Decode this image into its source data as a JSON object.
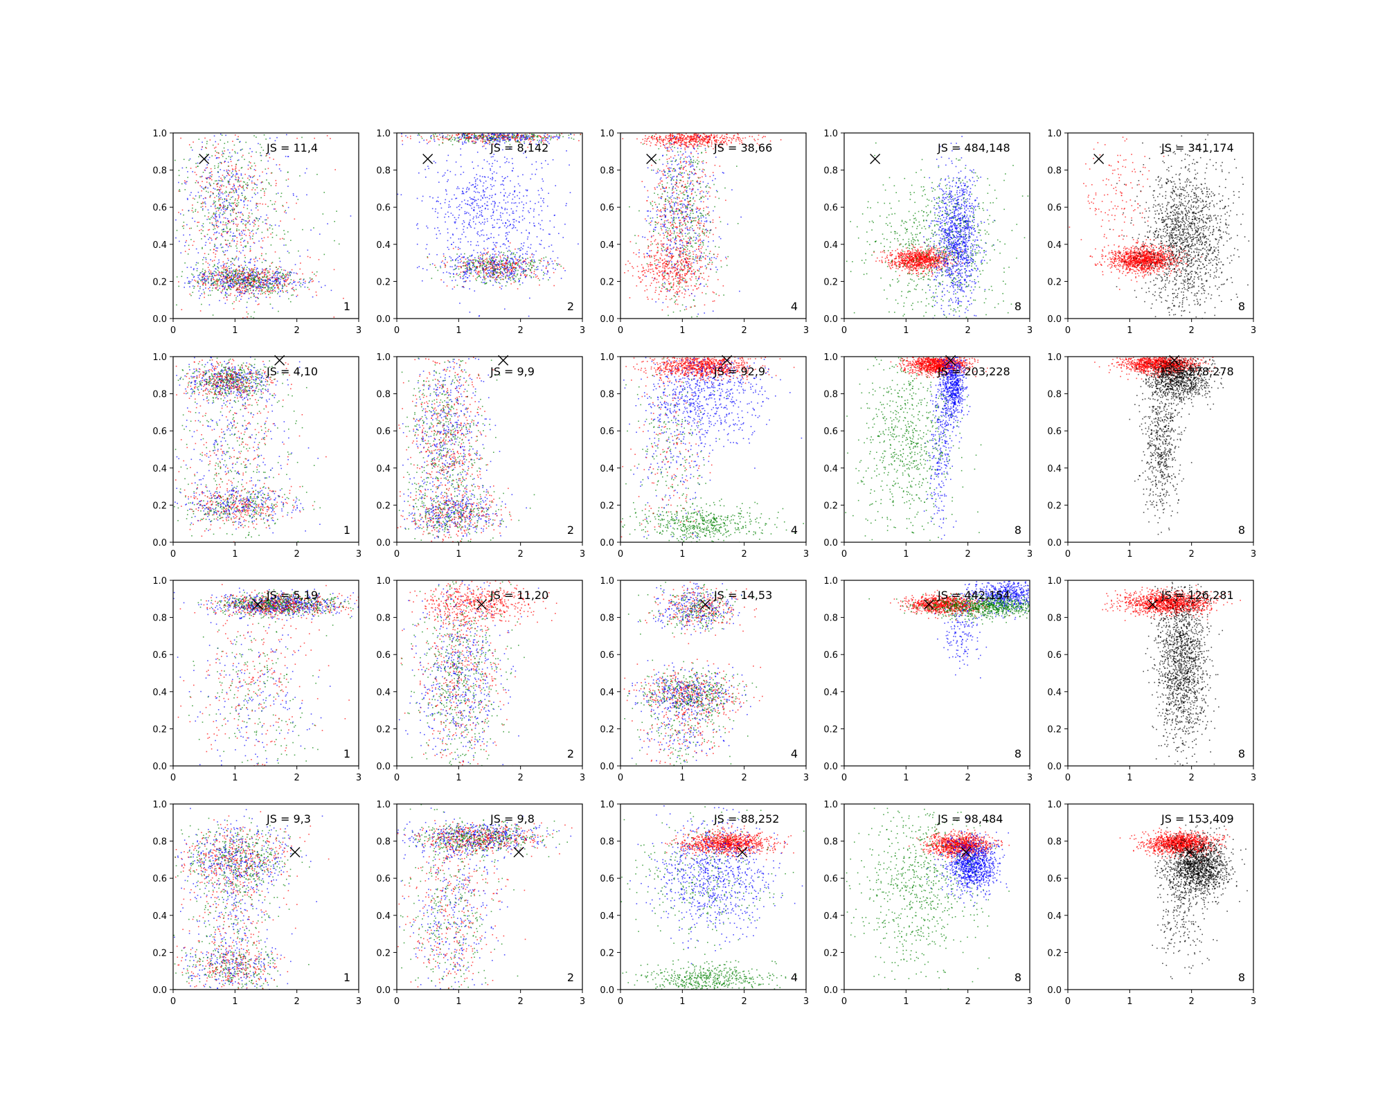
{
  "chart_data": {
    "type": "scatter",
    "layout": {
      "rows": 4,
      "cols": 5
    },
    "xlim": [
      0,
      3
    ],
    "ylim": [
      0,
      1
    ],
    "xticks": [
      "0",
      "1",
      "2",
      "3"
    ],
    "yticks": [
      "0.0",
      "0.2",
      "0.4",
      "0.6",
      "0.8",
      "1.0"
    ],
    "series_colors": {
      "red": "#ff0000",
      "green": "#008000",
      "blue": "#0000ff",
      "black": "#000000"
    },
    "rows": [
      {
        "marker": [
          0.5,
          0.86
        ],
        "panels": [
          {
            "js": "JS = 11,4",
            "n": "1",
            "colors": [
              "red",
              "green",
              "blue"
            ],
            "clusters": [
              {
                "color": "mixed",
                "cx": 1.2,
                "cy": 0.21,
                "sx": 0.45,
                "sy": 0.04,
                "n": 1100
              },
              {
                "color": "mixed",
                "cx": 0.85,
                "cy": 0.62,
                "sx": 0.35,
                "sy": 0.22,
                "n": 900
              },
              {
                "color": "mixed",
                "cx": 1.2,
                "cy": 0.5,
                "sx": 0.7,
                "sy": 0.3,
                "n": 350
              }
            ]
          },
          {
            "js": "JS = 8,142",
            "n": "2",
            "colors": [
              "red",
              "green",
              "blue"
            ],
            "clusters": [
              {
                "color": "mixed",
                "cx": 1.6,
                "cy": 0.98,
                "sx": 0.55,
                "sy": 0.015,
                "n": 700
              },
              {
                "color": "mixed",
                "cx": 1.6,
                "cy": 0.28,
                "sx": 0.4,
                "sy": 0.04,
                "n": 800
              },
              {
                "color": "blue",
                "cx": 1.5,
                "cy": 0.55,
                "sx": 0.55,
                "sy": 0.2,
                "n": 700
              }
            ]
          },
          {
            "js": "JS = 38,66",
            "n": "4",
            "colors": [
              "red",
              "green",
              "blue"
            ],
            "clusters": [
              {
                "color": "red",
                "cx": 1.2,
                "cy": 0.97,
                "sx": 0.4,
                "sy": 0.02,
                "n": 500
              },
              {
                "color": "mixed",
                "cx": 1.0,
                "cy": 0.55,
                "sx": 0.28,
                "sy": 0.25,
                "n": 1300
              },
              {
                "color": "red",
                "cx": 0.8,
                "cy": 0.28,
                "sx": 0.3,
                "sy": 0.08,
                "n": 400
              }
            ]
          },
          {
            "js": "JS = 484,148",
            "n": "8",
            "colors": [
              "red",
              "green",
              "blue"
            ],
            "clusters": [
              {
                "color": "red",
                "cx": 1.2,
                "cy": 0.32,
                "sx": 0.25,
                "sy": 0.03,
                "n": 900
              },
              {
                "color": "blue",
                "cx": 1.8,
                "cy": 0.42,
                "sx": 0.18,
                "sy": 0.18,
                "n": 1100
              },
              {
                "color": "green",
                "cx": 1.5,
                "cy": 0.38,
                "sx": 0.6,
                "sy": 0.2,
                "n": 700
              }
            ]
          },
          {
            "js": "JS = 341,174",
            "n": "8",
            "colors": [
              "red",
              "black"
            ],
            "clusters": [
              {
                "color": "red",
                "cx": 1.2,
                "cy": 0.32,
                "sx": 0.28,
                "sy": 0.035,
                "n": 1200
              },
              {
                "color": "red",
                "cx": 0.8,
                "cy": 0.7,
                "sx": 0.3,
                "sy": 0.18,
                "n": 150
              },
              {
                "color": "black",
                "cx": 1.9,
                "cy": 0.45,
                "sx": 0.35,
                "sy": 0.2,
                "n": 1500
              }
            ]
          }
        ]
      },
      {
        "marker": [
          1.72,
          0.98
        ],
        "panels": [
          {
            "js": "JS = 4,10",
            "n": "1",
            "colors": [
              "red",
              "green",
              "blue"
            ],
            "clusters": [
              {
                "color": "mixed",
                "cx": 0.9,
                "cy": 0.87,
                "sx": 0.35,
                "sy": 0.05,
                "n": 900
              },
              {
                "color": "mixed",
                "cx": 1.0,
                "cy": 0.2,
                "sx": 0.45,
                "sy": 0.05,
                "n": 700
              },
              {
                "color": "mixed",
                "cx": 1.0,
                "cy": 0.55,
                "sx": 0.5,
                "sy": 0.25,
                "n": 700
              }
            ]
          },
          {
            "js": "JS = 9,9",
            "n": "2",
            "colors": [
              "red",
              "green",
              "blue"
            ],
            "clusters": [
              {
                "color": "mixed",
                "cx": 0.8,
                "cy": 0.55,
                "sx": 0.3,
                "sy": 0.27,
                "n": 1400
              },
              {
                "color": "mixed",
                "cx": 0.9,
                "cy": 0.15,
                "sx": 0.4,
                "sy": 0.06,
                "n": 700
              }
            ]
          },
          {
            "js": "JS = 92,9",
            "n": "4",
            "colors": [
              "red",
              "green",
              "blue"
            ],
            "clusters": [
              {
                "color": "red",
                "cx": 1.3,
                "cy": 0.95,
                "sx": 0.4,
                "sy": 0.03,
                "n": 900
              },
              {
                "color": "blue",
                "cx": 1.4,
                "cy": 0.8,
                "sx": 0.45,
                "sy": 0.15,
                "n": 700
              },
              {
                "color": "green",
                "cx": 1.3,
                "cy": 0.1,
                "sx": 0.5,
                "sy": 0.05,
                "n": 500
              },
              {
                "color": "mixed",
                "cx": 0.8,
                "cy": 0.5,
                "sx": 0.3,
                "sy": 0.25,
                "n": 500
              }
            ]
          },
          {
            "js": "JS = 203,228",
            "n": "8",
            "colors": [
              "red",
              "green",
              "blue"
            ],
            "clusters": [
              {
                "color": "red",
                "cx": 1.5,
                "cy": 0.96,
                "sx": 0.25,
                "sy": 0.025,
                "n": 1100
              },
              {
                "color": "blue",
                "cx": 1.75,
                "cy": 0.85,
                "sx": 0.1,
                "sy": 0.1,
                "n": 700
              },
              {
                "color": "blue",
                "cx": 1.55,
                "cy": 0.5,
                "sx": 0.1,
                "sy": 0.2,
                "n": 250
              },
              {
                "color": "green",
                "cx": 1.0,
                "cy": 0.55,
                "sx": 0.4,
                "sy": 0.25,
                "n": 700
              }
            ]
          },
          {
            "js": "JS = 278,278",
            "n": "8",
            "colors": [
              "red",
              "black"
            ],
            "clusters": [
              {
                "color": "red",
                "cx": 1.5,
                "cy": 0.96,
                "sx": 0.3,
                "sy": 0.025,
                "n": 1200
              },
              {
                "color": "black",
                "cx": 1.8,
                "cy": 0.88,
                "sx": 0.25,
                "sy": 0.06,
                "n": 900
              },
              {
                "color": "black",
                "cx": 1.5,
                "cy": 0.55,
                "sx": 0.15,
                "sy": 0.2,
                "n": 600
              }
            ]
          }
        ]
      },
      {
        "marker": [
          1.37,
          0.87
        ],
        "panels": [
          {
            "js": "JS = 5,19",
            "n": "1",
            "colors": [
              "red",
              "green",
              "blue"
            ],
            "clusters": [
              {
                "color": "mixed",
                "cx": 1.7,
                "cy": 0.87,
                "sx": 0.5,
                "sy": 0.03,
                "n": 1500
              },
              {
                "color": "mixed",
                "cx": 1.3,
                "cy": 0.4,
                "sx": 0.5,
                "sy": 0.22,
                "n": 600
              }
            ]
          },
          {
            "js": "JS = 11,20",
            "n": "2",
            "colors": [
              "red",
              "green",
              "blue"
            ],
            "clusters": [
              {
                "color": "red",
                "cx": 1.3,
                "cy": 0.88,
                "sx": 0.45,
                "sy": 0.05,
                "n": 500
              },
              {
                "color": "mixed",
                "cx": 1.0,
                "cy": 0.5,
                "sx": 0.35,
                "sy": 0.25,
                "n": 1400
              }
            ]
          },
          {
            "js": "JS = 14,53",
            "n": "4",
            "colors": [
              "red",
              "green",
              "blue"
            ],
            "clusters": [
              {
                "color": "mixed",
                "cx": 1.2,
                "cy": 0.85,
                "sx": 0.35,
                "sy": 0.06,
                "n": 700
              },
              {
                "color": "mixed",
                "cx": 1.1,
                "cy": 0.39,
                "sx": 0.4,
                "sy": 0.06,
                "n": 1000
              },
              {
                "color": "mixed",
                "cx": 1.0,
                "cy": 0.2,
                "sx": 0.35,
                "sy": 0.12,
                "n": 400
              }
            ]
          },
          {
            "js": "JS = 442,154",
            "n": "8",
            "colors": [
              "red",
              "green",
              "blue"
            ],
            "clusters": [
              {
                "color": "red",
                "cx": 1.6,
                "cy": 0.87,
                "sx": 0.3,
                "sy": 0.025,
                "n": 900
              },
              {
                "color": "blue",
                "cx": 2.6,
                "cy": 0.92,
                "sx": 0.3,
                "sy": 0.04,
                "n": 600
              },
              {
                "color": "green",
                "cx": 2.3,
                "cy": 0.86,
                "sx": 0.5,
                "sy": 0.03,
                "n": 800
              },
              {
                "color": "blue",
                "cx": 1.9,
                "cy": 0.72,
                "sx": 0.15,
                "sy": 0.1,
                "n": 150
              }
            ]
          },
          {
            "js": "JS = 126,281",
            "n": "8",
            "colors": [
              "red",
              "black"
            ],
            "clusters": [
              {
                "color": "red",
                "cx": 1.6,
                "cy": 0.88,
                "sx": 0.35,
                "sy": 0.03,
                "n": 1300
              },
              {
                "color": "black",
                "cx": 1.85,
                "cy": 0.55,
                "sx": 0.2,
                "sy": 0.22,
                "n": 1500
              }
            ]
          }
        ]
      },
      {
        "marker": [
          1.97,
          0.74
        ],
        "panels": [
          {
            "js": "JS = 9,3",
            "n": "1",
            "colors": [
              "red",
              "green",
              "blue"
            ],
            "clusters": [
              {
                "color": "mixed",
                "cx": 1.0,
                "cy": 0.7,
                "sx": 0.45,
                "sy": 0.09,
                "n": 1100
              },
              {
                "color": "mixed",
                "cx": 0.9,
                "cy": 0.12,
                "sx": 0.4,
                "sy": 0.07,
                "n": 600
              },
              {
                "color": "mixed",
                "cx": 0.9,
                "cy": 0.4,
                "sx": 0.4,
                "sy": 0.2,
                "n": 500
              }
            ]
          },
          {
            "js": "JS = 9,8",
            "n": "2",
            "colors": [
              "red",
              "green",
              "blue"
            ],
            "clusters": [
              {
                "color": "mixed",
                "cx": 1.3,
                "cy": 0.82,
                "sx": 0.5,
                "sy": 0.04,
                "n": 1200
              },
              {
                "color": "mixed",
                "cx": 0.9,
                "cy": 0.4,
                "sx": 0.35,
                "sy": 0.25,
                "n": 900
              }
            ]
          },
          {
            "js": "JS = 88,252",
            "n": "4",
            "colors": [
              "red",
              "green",
              "blue"
            ],
            "clusters": [
              {
                "color": "red",
                "cx": 1.7,
                "cy": 0.79,
                "sx": 0.35,
                "sy": 0.03,
                "n": 1000
              },
              {
                "color": "blue",
                "cx": 1.5,
                "cy": 0.62,
                "sx": 0.45,
                "sy": 0.15,
                "n": 800
              },
              {
                "color": "green",
                "cx": 1.4,
                "cy": 0.06,
                "sx": 0.5,
                "sy": 0.04,
                "n": 500
              },
              {
                "color": "green",
                "cx": 1.2,
                "cy": 0.6,
                "sx": 0.6,
                "sy": 0.2,
                "n": 300
              }
            ]
          },
          {
            "js": "JS = 98,484",
            "n": "8",
            "colors": [
              "red",
              "green",
              "blue"
            ],
            "clusters": [
              {
                "color": "red",
                "cx": 1.85,
                "cy": 0.78,
                "sx": 0.25,
                "sy": 0.03,
                "n": 1000
              },
              {
                "color": "blue",
                "cx": 2.05,
                "cy": 0.68,
                "sx": 0.2,
                "sy": 0.07,
                "n": 1000
              },
              {
                "color": "green",
                "cx": 1.2,
                "cy": 0.55,
                "sx": 0.5,
                "sy": 0.25,
                "n": 700
              }
            ]
          },
          {
            "js": "JS = 153,409",
            "n": "8",
            "colors": [
              "red",
              "black"
            ],
            "clusters": [
              {
                "color": "red",
                "cx": 1.8,
                "cy": 0.79,
                "sx": 0.28,
                "sy": 0.03,
                "n": 1200
              },
              {
                "color": "black",
                "cx": 2.1,
                "cy": 0.66,
                "sx": 0.25,
                "sy": 0.08,
                "n": 1400
              },
              {
                "color": "black",
                "cx": 1.8,
                "cy": 0.4,
                "sx": 0.2,
                "sy": 0.15,
                "n": 200
              }
            ]
          }
        ]
      }
    ]
  }
}
